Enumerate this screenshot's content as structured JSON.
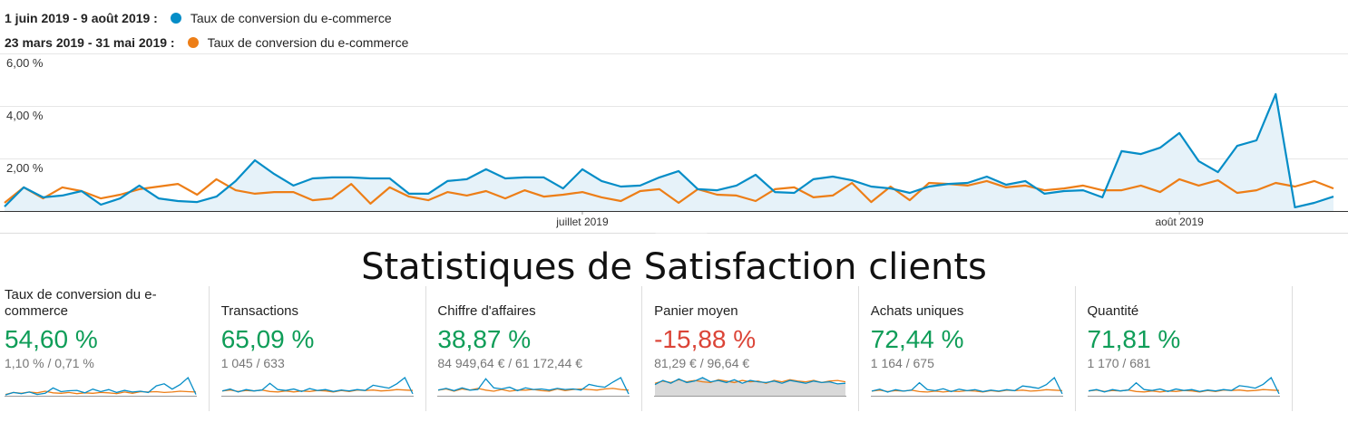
{
  "chart_data": {
    "type": "line",
    "categories": [
      null,
      null,
      null,
      null,
      null,
      null,
      null,
      null,
      null,
      null,
      null,
      null,
      null,
      null,
      null,
      null,
      null,
      null,
      null,
      null,
      null,
      null,
      null,
      null,
      null,
      null,
      null,
      null,
      null,
      null,
      "juillet 2019",
      null,
      null,
      null,
      null,
      null,
      null,
      null,
      null,
      null,
      null,
      null,
      null,
      null,
      null,
      null,
      null,
      null,
      null,
      null,
      null,
      null,
      null,
      null,
      null,
      null,
      null,
      null,
      null,
      null,
      null,
      "août 2019",
      null,
      null,
      null,
      null,
      null,
      null,
      null,
      null
    ],
    "series": [
      {
        "period": "1 juin 2019 - 9 août 2019 :",
        "name": "Taux de conversion du e-commerce",
        "color": "#058dc7",
        "area_color": "#e6f2f9",
        "values": [
          0.17,
          0.9,
          0.52,
          0.59,
          0.76,
          0.24,
          0.48,
          0.97,
          0.48,
          0.38,
          0.34,
          0.55,
          1.14,
          1.93,
          1.41,
          0.97,
          1.24,
          1.28,
          1.28,
          1.24,
          1.24,
          0.66,
          0.66,
          1.14,
          1.21,
          1.59,
          1.24,
          1.28,
          1.28,
          0.86,
          1.59,
          1.14,
          0.93,
          0.97,
          1.28,
          1.52,
          0.83,
          0.79,
          0.97,
          1.38,
          0.72,
          0.69,
          1.21,
          1.31,
          1.17,
          0.93,
          0.86,
          0.69,
          0.93,
          1.03,
          1.07,
          1.31,
          1.0,
          1.14,
          0.66,
          0.76,
          0.79,
          0.52,
          2.28,
          2.17,
          2.41,
          2.97,
          1.9,
          1.48,
          2.48,
          2.69,
          4.45,
          0.14,
          0.31,
          0.55
        ]
      },
      {
        "period": "23 mars 2019 - 31 mai 2019 :",
        "name": "Taux de conversion du e-commerce",
        "color": "#ed7e17",
        "values": [
          0.31,
          0.9,
          0.48,
          0.9,
          0.76,
          0.48,
          0.62,
          0.83,
          0.93,
          1.03,
          0.62,
          1.21,
          0.79,
          0.66,
          0.72,
          0.72,
          0.41,
          0.48,
          1.03,
          0.28,
          0.9,
          0.55,
          0.41,
          0.72,
          0.59,
          0.76,
          0.48,
          0.79,
          0.55,
          0.62,
          0.72,
          0.52,
          0.38,
          0.76,
          0.83,
          0.31,
          0.83,
          0.62,
          0.59,
          0.38,
          0.83,
          0.9,
          0.52,
          0.59,
          1.07,
          0.34,
          0.93,
          0.41,
          1.07,
          1.03,
          0.97,
          1.14,
          0.9,
          0.97,
          0.79,
          0.86,
          0.97,
          0.79,
          0.79,
          0.97,
          0.72,
          1.21,
          0.97,
          1.17,
          0.69,
          0.79,
          1.07,
          0.93,
          1.14,
          0.86
        ]
      }
    ],
    "ylim": [
      0,
      6
    ],
    "yticks": [
      {
        "value": 2,
        "label": "2,00 %"
      },
      {
        "value": 4,
        "label": "4,00 %"
      },
      {
        "value": 6,
        "label": "6,00 %"
      }
    ],
    "grid": true
  },
  "title": "Statistiques de Satisfaction clients",
  "scorecards": [
    {
      "label": "Taux de conversion du e-commerce",
      "change": "54,60 %",
      "change_color": "#0f9d58",
      "values": "1,10 % / 0,71 %",
      "sparkline": [
        [
          0.2,
          0.8,
          0.5,
          0.9,
          0.3,
          0.6,
          1.9,
          1.0,
          1.2,
          1.3,
          0.7,
          1.6,
          1.0,
          1.5,
          0.8,
          1.3,
          0.9,
          1.1,
          0.8,
          2.4,
          2.9,
          1.6,
          2.7,
          4.4,
          0.3
        ],
        [
          0.3,
          0.8,
          0.6,
          0.9,
          0.7,
          1.1,
          0.7,
          0.6,
          0.8,
          0.5,
          0.7,
          0.6,
          0.8,
          0.7,
          0.5,
          0.9,
          0.6,
          1.0,
          0.9,
          1.0,
          0.8,
          0.9,
          1.1,
          1.0,
          0.9
        ]
      ]
    },
    {
      "label": "Transactions",
      "change": "65,09 %",
      "change_color": "#0f9d58",
      "values": "1 045 / 633",
      "sparkline": [
        [
          1,
          1.4,
          0.8,
          1.3,
          1.0,
          1.2,
          2.6,
          1.3,
          1.1,
          1.4,
          0.9,
          1.5,
          1.1,
          1.3,
          0.9,
          1.2,
          1.0,
          1.3,
          1.1,
          2.2,
          1.9,
          1.6,
          2.5,
          3.8,
          0.4
        ],
        [
          1,
          1.2,
          0.9,
          1.1,
          1.0,
          1.2,
          0.9,
          0.8,
          1.0,
          0.8,
          1.0,
          0.9,
          1.1,
          1.0,
          0.8,
          1.1,
          0.9,
          1.2,
          1.1,
          1.2,
          1.0,
          1.1,
          1.3,
          1.2,
          1.1
        ]
      ]
    },
    {
      "label": "Chiffre d'affaires",
      "change": "38,87 %",
      "change_color": "#0f9d58",
      "values": "84 949,64 € / 61 172,44 €",
      "sparkline": [
        [
          1,
          1.3,
          0.9,
          1.4,
          1.0,
          1.1,
          3.0,
          1.4,
          1.2,
          1.5,
          0.9,
          1.4,
          1.1,
          1.2,
          1.0,
          1.3,
          1.1,
          1.2,
          1.0,
          2.0,
          1.7,
          1.5,
          2.4,
          3.2,
          0.3
        ],
        [
          1,
          1.2,
          0.8,
          1.2,
          1.0,
          1.3,
          1.0,
          0.8,
          1.1,
          0.8,
          1.0,
          1.0,
          1.1,
          0.9,
          0.8,
          1.2,
          0.9,
          1.1,
          1.2,
          1.1,
          1.0,
          1.2,
          1.3,
          1.1,
          1.0
        ]
      ]
    },
    {
      "label": "Panier moyen",
      "change": "-15,88 %",
      "change_color": "#db4437",
      "values": "81,29 € / 96,64 €",
      "sparkline_fill": "#d9d9d9",
      "sparkline": [
        [
          1.6,
          2.2,
          1.8,
          2.4,
          1.9,
          2.1,
          2.6,
          2.0,
          2.2,
          1.9,
          2.3,
          1.8,
          2.2,
          2.0,
          1.9,
          2.1,
          1.8,
          2.2,
          2.0,
          1.8,
          2.1,
          1.9,
          2.0,
          1.7,
          1.8
        ],
        [
          1.8,
          2.1,
          1.9,
          2.3,
          2.0,
          2.2,
          2.0,
          1.9,
          2.3,
          2.1,
          1.9,
          2.2,
          2.0,
          2.1,
          1.8,
          2.2,
          2.0,
          2.3,
          2.1,
          2.0,
          2.2,
          1.9,
          2.1,
          2.2,
          2.0
        ]
      ]
    },
    {
      "label": "Achats uniques",
      "change": "72,44 %",
      "change_color": "#0f9d58",
      "values": "1 164 / 675",
      "sparkline": [
        [
          1,
          1.4,
          0.8,
          1.3,
          1.0,
          1.2,
          2.8,
          1.3,
          1.1,
          1.5,
          0.9,
          1.4,
          1.1,
          1.3,
          0.9,
          1.2,
          1.0,
          1.3,
          1.1,
          2.1,
          1.9,
          1.6,
          2.4,
          3.9,
          0.4
        ],
        [
          1,
          1.2,
          0.9,
          1.1,
          1.0,
          1.2,
          0.9,
          0.8,
          1.0,
          0.8,
          1.0,
          0.9,
          1.1,
          1.0,
          0.8,
          1.1,
          0.9,
          1.2,
          1.1,
          1.2,
          1.0,
          1.1,
          1.3,
          1.2,
          1.1
        ]
      ]
    },
    {
      "label": "Quantité",
      "change": "71,81 %",
      "change_color": "#0f9d58",
      "values": "1 170 / 681",
      "sparkline": [
        [
          1,
          1.3,
          0.8,
          1.3,
          1.0,
          1.2,
          2.7,
          1.3,
          1.1,
          1.4,
          0.9,
          1.4,
          1.1,
          1.3,
          0.9,
          1.2,
          1.0,
          1.3,
          1.1,
          2.1,
          1.9,
          1.6,
          2.4,
          3.8,
          0.4
        ],
        [
          1,
          1.2,
          0.9,
          1.1,
          1.0,
          1.2,
          0.9,
          0.8,
          1.0,
          0.8,
          1.0,
          0.9,
          1.1,
          1.0,
          0.8,
          1.1,
          0.9,
          1.2,
          1.1,
          1.2,
          1.0,
          1.1,
          1.3,
          1.2,
          1.1
        ]
      ]
    }
  ]
}
